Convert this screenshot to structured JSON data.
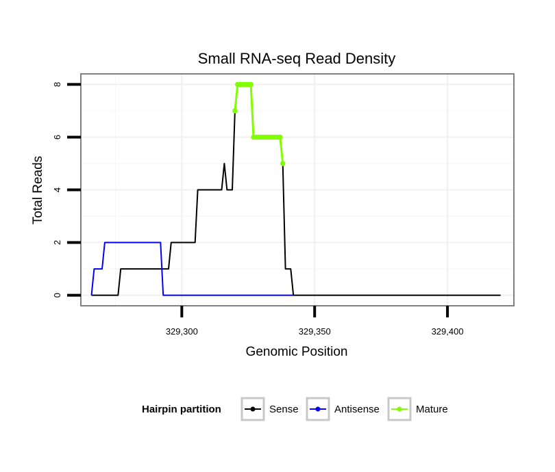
{
  "chart_data": {
    "type": "line",
    "title": "Small RNA-seq Read Density",
    "xlabel": "Genomic Position",
    "ylabel": "Total Reads",
    "xlim": [
      329262,
      329425
    ],
    "ylim": [
      -0.4,
      8.4
    ],
    "xticks": [
      329300,
      329350,
      329400
    ],
    "xtick_labels": [
      "329,300",
      "329,350",
      "329,400"
    ],
    "yticks": [
      0,
      2,
      4,
      6,
      8
    ],
    "ytick_labels": [
      "0",
      "2",
      "4",
      "6",
      "8"
    ],
    "grid": true,
    "legend": {
      "title": "Hairpin partition",
      "position": "bottom",
      "entries": [
        "Sense",
        "Antisense",
        "Mature"
      ]
    },
    "series": [
      {
        "name": "Sense",
        "color": "#000000",
        "style": "line",
        "points": [
          [
            329266,
            0
          ],
          [
            329276,
            0
          ],
          [
            329277,
            1
          ],
          [
            329295,
            1
          ],
          [
            329296,
            2
          ],
          [
            329305,
            2
          ],
          [
            329306,
            4
          ],
          [
            329315,
            4
          ],
          [
            329316,
            5
          ],
          [
            329317,
            4
          ],
          [
            329319,
            4
          ],
          [
            329320,
            7
          ],
          [
            329321,
            8
          ],
          [
            329326,
            8
          ],
          [
            329327,
            6
          ],
          [
            329337,
            6
          ],
          [
            329338,
            5
          ],
          [
            329339,
            1
          ],
          [
            329341,
            1
          ],
          [
            329342,
            0
          ],
          [
            329420,
            0
          ]
        ]
      },
      {
        "name": "Antisense",
        "color": "#0000ff",
        "style": "line",
        "points": [
          [
            329266,
            0
          ],
          [
            329267,
            1
          ],
          [
            329270,
            1
          ],
          [
            329271,
            2
          ],
          [
            329292,
            2
          ],
          [
            329293,
            0
          ],
          [
            329342,
            0
          ]
        ]
      },
      {
        "name": "Mature",
        "color": "#7fff00",
        "style": "line+points",
        "points": [
          [
            329320,
            7
          ],
          [
            329321,
            8
          ],
          [
            329322,
            8
          ],
          [
            329323,
            8
          ],
          [
            329324,
            8
          ],
          [
            329325,
            8
          ],
          [
            329326,
            8
          ],
          [
            329327,
            6
          ],
          [
            329328,
            6
          ],
          [
            329329,
            6
          ],
          [
            329330,
            6
          ],
          [
            329331,
            6
          ],
          [
            329332,
            6
          ],
          [
            329333,
            6
          ],
          [
            329334,
            6
          ],
          [
            329335,
            6
          ],
          [
            329336,
            6
          ],
          [
            329337,
            6
          ],
          [
            329338,
            5
          ]
        ]
      }
    ]
  }
}
